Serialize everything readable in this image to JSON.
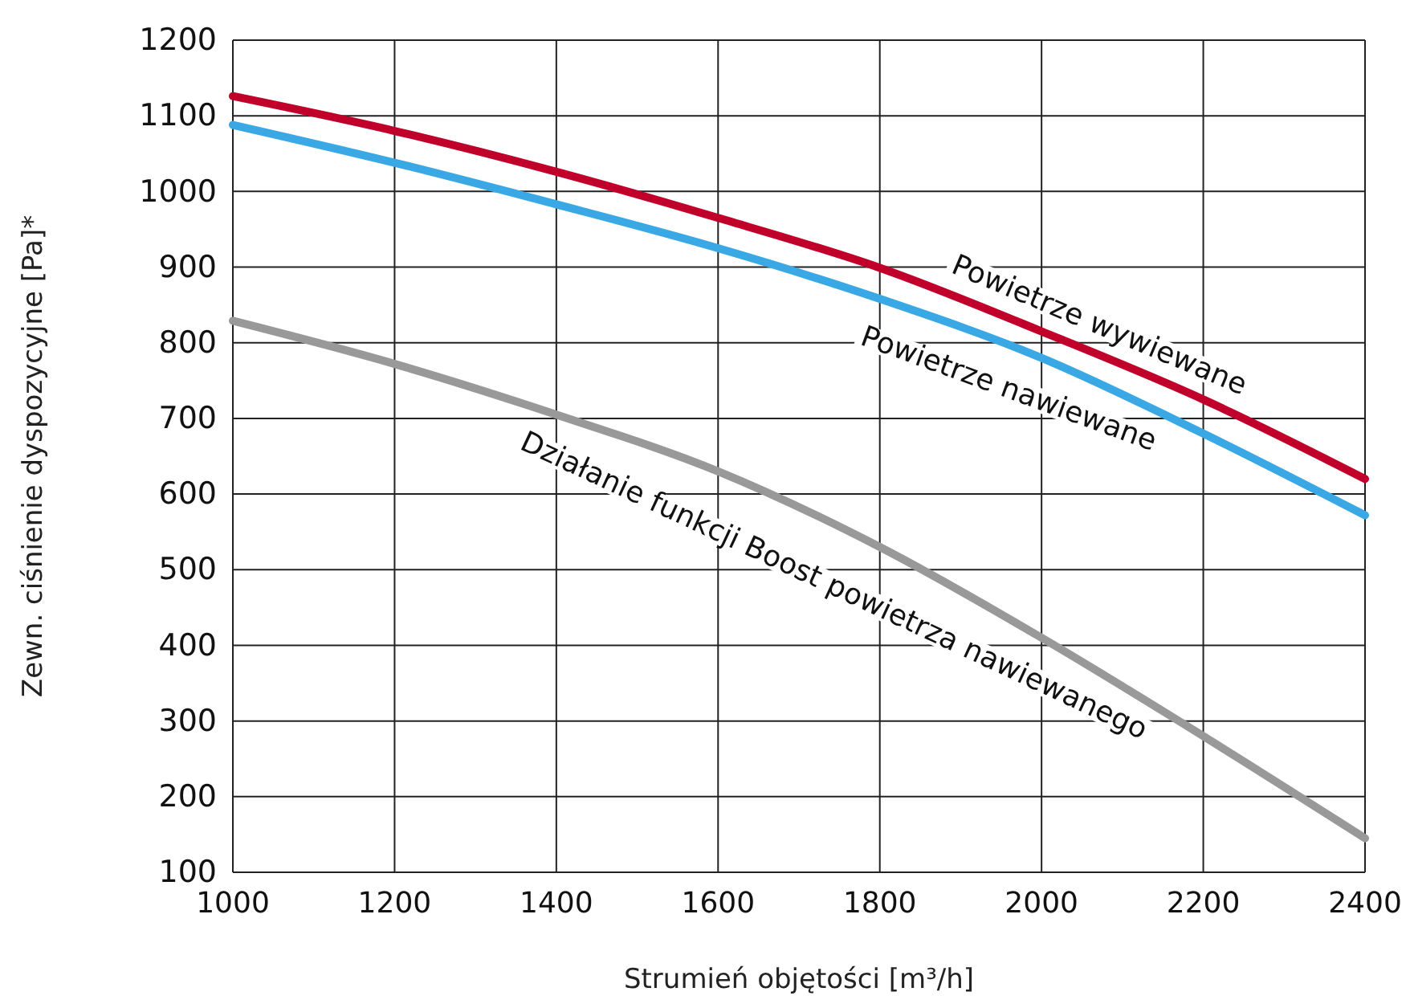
{
  "chart_data": {
    "type": "line",
    "xlabel": "Strumień objętości [m³/h]",
    "ylabel": "Zewn. ciśnienie dyspozycyjne [Pa]*",
    "x": [
      1000,
      1200,
      1400,
      1600,
      1800,
      2000,
      2200,
      2400
    ],
    "series": [
      {
        "color": "#c0002a",
        "values": [
          1126,
          1080,
          1026,
          965,
          899,
          815,
          725,
          620
        ]
      },
      {
        "color": "#3aa8e4",
        "values": [
          1088,
          1038,
          983,
          925,
          858,
          780,
          680,
          572
        ]
      },
      {
        "color": "#999999",
        "values": [
          829,
          772,
          705,
          630,
          530,
          410,
          280,
          145
        ]
      }
    ],
    "annotations": [
      "Powietrze wywiewane",
      "Powietrze nawiewane",
      "Działanie funkcji Boost powietrza nawiewanego"
    ],
    "xlim": [
      1000,
      2400
    ],
    "xticks": [
      1000,
      1200,
      1400,
      1600,
      1800,
      2000,
      2200,
      2400
    ],
    "ylim": [
      100,
      1200
    ],
    "yticks": [
      100,
      200,
      300,
      400,
      500,
      600,
      700,
      800,
      900,
      1000,
      1100,
      1200
    ],
    "grid": true
  }
}
